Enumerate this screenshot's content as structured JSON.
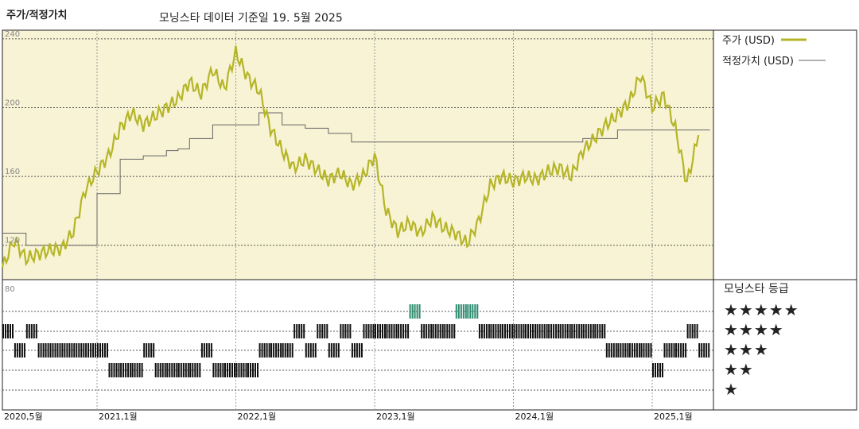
{
  "header": {
    "title": "주가/적정가치",
    "subtitle": "모닝스타 데이터 기준일 19. 5월 2025"
  },
  "legend": {
    "price_label": "주가 (USD)",
    "fair_value_label": "적정가치 (USD)",
    "price_color": "#b5b528",
    "fair_value_color": "#666666"
  },
  "ratings_panel": {
    "title": "모닝스타 등급",
    "rows": [
      "★★★★★",
      "★★★★",
      "★★★",
      "★★",
      "★"
    ]
  },
  "chart_data": {
    "type": "line",
    "x_tick_labels": [
      "2020,5월",
      "2021,1월",
      "2022,1월",
      "2023,1월",
      "2024,1월",
      "2025,1월"
    ],
    "y_tick_labels": [
      "240",
      "200",
      "160",
      "120"
    ],
    "ylim": [
      100,
      245
    ],
    "rating_axis_label": "80",
    "series": [
      {
        "name": "주가 (USD)",
        "x": [
          "2020-05",
          "2020-06",
          "2020-07",
          "2020-08",
          "2020-09",
          "2020-10",
          "2020-11",
          "2020-12",
          "2021-01",
          "2021-02",
          "2021-03",
          "2021-04",
          "2021-05",
          "2021-06",
          "2021-07",
          "2021-08",
          "2021-09",
          "2021-10",
          "2021-11",
          "2021-12",
          "2022-01",
          "2022-02",
          "2022-03",
          "2022-04",
          "2022-05",
          "2022-06",
          "2022-07",
          "2022-08",
          "2022-09",
          "2022-10",
          "2022-11",
          "2022-12",
          "2023-01",
          "2023-02",
          "2023-03",
          "2023-04",
          "2023-05",
          "2023-06",
          "2023-07",
          "2023-08",
          "2023-09",
          "2023-10",
          "2023-11",
          "2023-12",
          "2024-01",
          "2024-02",
          "2024-03",
          "2024-04",
          "2024-05",
          "2024-06",
          "2024-07",
          "2024-08",
          "2024-09",
          "2024-10",
          "2024-11",
          "2024-12",
          "2025-01",
          "2025-02",
          "2025-03",
          "2025-04",
          "2025-05"
        ],
        "values": [
          107,
          123,
          112,
          115,
          117,
          118,
          128,
          152,
          163,
          172,
          188,
          197,
          190,
          195,
          200,
          205,
          215,
          208,
          222,
          211,
          232,
          218,
          210,
          188,
          175,
          165,
          170,
          164,
          158,
          162,
          155,
          160,
          172,
          140,
          128,
          133,
          127,
          136,
          130,
          127,
          121,
          134,
          155,
          160,
          157,
          160,
          158,
          163,
          165,
          160,
          175,
          182,
          190,
          196,
          203,
          219,
          200,
          207,
          188,
          156,
          184
        ]
      },
      {
        "name": "적정가치 (USD)",
        "x": [
          "2020-05",
          "2020-06",
          "2020-07",
          "2020-08",
          "2020-09",
          "2020-10",
          "2020-11",
          "2020-12",
          "2021-01",
          "2021-02",
          "2021-03",
          "2021-04",
          "2021-05",
          "2021-06",
          "2021-07",
          "2021-08",
          "2021-09",
          "2021-10",
          "2021-11",
          "2021-12",
          "2022-01",
          "2022-02",
          "2022-03",
          "2022-04",
          "2022-05",
          "2022-06",
          "2022-07",
          "2022-08",
          "2022-09",
          "2022-10",
          "2022-11",
          "2022-12",
          "2023-01",
          "2023-02",
          "2023-03",
          "2023-04",
          "2023-05",
          "2023-06",
          "2023-07",
          "2023-08",
          "2023-09",
          "2023-10",
          "2023-11",
          "2023-12",
          "2024-01",
          "2024-02",
          "2024-03",
          "2024-04",
          "2024-05",
          "2024-06",
          "2024-07",
          "2024-08",
          "2024-09",
          "2024-10",
          "2024-11",
          "2024-12",
          "2025-01",
          "2025-02",
          "2025-03",
          "2025-04",
          "2025-05"
        ],
        "values": [
          127,
          127,
          120,
          120,
          120,
          120,
          120,
          120,
          150,
          150,
          170,
          170,
          172,
          172,
          175,
          176,
          182,
          182,
          190,
          190,
          190,
          190,
          197,
          197,
          190,
          190,
          188,
          188,
          185,
          185,
          180,
          180,
          180,
          180,
          180,
          180,
          180,
          180,
          180,
          180,
          180,
          180,
          180,
          180,
          180,
          180,
          180,
          180,
          180,
          180,
          182,
          182,
          182,
          187,
          187,
          187,
          187,
          187,
          187,
          187,
          187
        ]
      }
    ],
    "ratings": {
      "levels": [
        5,
        4,
        3,
        2,
        1
      ],
      "x": [
        "2020-05",
        "2020-06",
        "2020-07",
        "2020-08",
        "2020-09",
        "2020-10",
        "2020-11",
        "2020-12",
        "2021-01",
        "2021-02",
        "2021-03",
        "2021-04",
        "2021-05",
        "2021-06",
        "2021-07",
        "2021-08",
        "2021-09",
        "2021-10",
        "2021-11",
        "2021-12",
        "2022-01",
        "2022-02",
        "2022-03",
        "2022-04",
        "2022-05",
        "2022-06",
        "2022-07",
        "2022-08",
        "2022-09",
        "2022-10",
        "2022-11",
        "2022-12",
        "2023-01",
        "2023-02",
        "2023-03",
        "2023-04",
        "2023-05",
        "2023-06",
        "2023-07",
        "2023-08",
        "2023-09",
        "2023-10",
        "2023-11",
        "2023-12",
        "2024-01",
        "2024-02",
        "2024-03",
        "2024-04",
        "2024-05",
        "2024-06",
        "2024-07",
        "2024-08",
        "2024-09",
        "2024-10",
        "2024-11",
        "2024-12",
        "2025-01",
        "2025-02",
        "2025-03",
        "2025-04",
        "2025-05"
      ],
      "stars": [
        4,
        3,
        4,
        3,
        3,
        3,
        3,
        3,
        3,
        2,
        2,
        2,
        3,
        2,
        2,
        2,
        2,
        3,
        2,
        2,
        2,
        2,
        3,
        3,
        3,
        4,
        3,
        4,
        3,
        4,
        3,
        4,
        4,
        4,
        4,
        5,
        4,
        4,
        4,
        5,
        5,
        4,
        4,
        4,
        4,
        4,
        4,
        4,
        4,
        4,
        4,
        4,
        3,
        3,
        3,
        3,
        2,
        3,
        3,
        4,
        3
      ]
    }
  }
}
